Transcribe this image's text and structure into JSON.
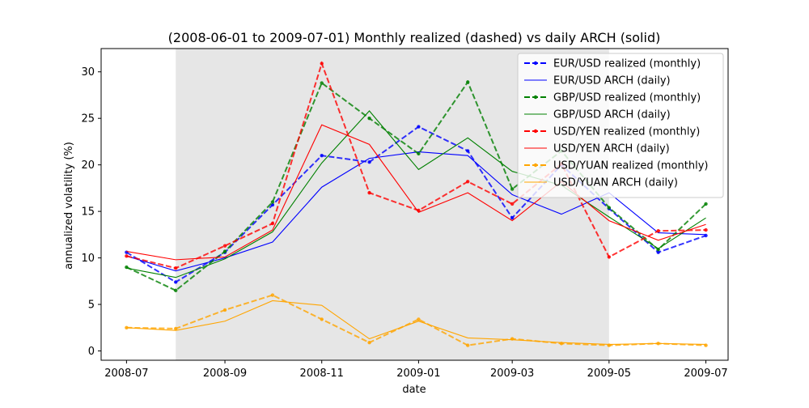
{
  "chart_data": {
    "type": "line",
    "title": "(2008-06-01 to 2009-07-01) Monthly realized (dashed) vs daily ARCH (solid)",
    "xlabel": "date",
    "ylabel": "annualized volatility (%)",
    "x_ticks": [
      "2008-07",
      "2008-09",
      "2008-11",
      "2009-01",
      "2009-03",
      "2009-05",
      "2009-07"
    ],
    "y_ticks": [
      0,
      5,
      10,
      15,
      20,
      25,
      30
    ],
    "ylim": [
      -1,
      32.5
    ],
    "xlim": [
      "2008-06-15",
      "2009-07-15"
    ],
    "shaded_region": [
      "2008-08-01",
      "2009-05-01"
    ],
    "grid": false,
    "legend_position": "top-right",
    "dates": [
      "2008-07-01",
      "2008-08-01",
      "2008-09-01",
      "2008-10-01",
      "2008-11-01",
      "2008-12-01",
      "2009-01-01",
      "2009-02-01",
      "2009-03-01",
      "2009-04-01",
      "2009-05-01",
      "2009-06-01",
      "2009-07-01"
    ],
    "series": [
      {
        "name": "EUR/USD realized (monthly)",
        "color": "#0000ff",
        "dashed": true,
        "markers": true,
        "values": [
          10.6,
          7.4,
          10.6,
          15.7,
          21.0,
          20.3,
          24.1,
          21.5,
          14.3,
          20.0,
          15.3,
          10.6,
          12.4
        ]
      },
      {
        "name": "EUR/USD ARCH (daily)",
        "color": "#0000ff",
        "dashed": false,
        "markers": false,
        "values": [
          10.2,
          8.6,
          10.0,
          11.7,
          17.6,
          20.7,
          21.4,
          21.0,
          16.8,
          14.7,
          17.0,
          12.7,
          12.5
        ]
      },
      {
        "name": "GBP/USD realized (monthly)",
        "color": "#008000",
        "dashed": true,
        "markers": true,
        "values": [
          9.0,
          6.5,
          10.7,
          16.0,
          28.8,
          25.0,
          21.2,
          28.9,
          17.4,
          21.5,
          15.4,
          10.9,
          15.8
        ]
      },
      {
        "name": "GBP/USD ARCH (daily)",
        "color": "#008000",
        "dashed": false,
        "markers": false,
        "values": [
          8.9,
          7.9,
          9.9,
          12.8,
          20.2,
          25.8,
          19.5,
          22.9,
          19.3,
          17.8,
          14.4,
          11.0,
          14.3
        ]
      },
      {
        "name": "USD/YEN realized (monthly)",
        "color": "#ff0000",
        "dashed": true,
        "markers": true,
        "values": [
          10.2,
          8.9,
          11.3,
          13.7,
          30.9,
          17.0,
          15.1,
          18.2,
          15.8,
          20.1,
          10.1,
          12.9,
          13.0
        ]
      },
      {
        "name": "USD/YEN ARCH (daily)",
        "color": "#ff0000",
        "dashed": false,
        "markers": false,
        "values": [
          10.7,
          9.8,
          10.1,
          13.0,
          24.3,
          22.2,
          14.9,
          17.0,
          14.0,
          18.2,
          14.0,
          11.9,
          13.6
        ]
      },
      {
        "name": "USD/YUAN realized (monthly)",
        "color": "#ffa500",
        "dashed": true,
        "markers": true,
        "values": [
          2.5,
          2.4,
          4.4,
          6.0,
          3.4,
          0.9,
          3.4,
          0.6,
          1.3,
          0.8,
          0.6,
          0.8,
          0.6
        ]
      },
      {
        "name": "USD/YUAN ARCH (daily)",
        "color": "#ffa500",
        "dashed": false,
        "markers": false,
        "values": [
          2.5,
          2.2,
          3.2,
          5.4,
          4.9,
          1.3,
          3.2,
          1.4,
          1.2,
          0.9,
          0.7,
          0.8,
          0.7
        ]
      }
    ]
  }
}
